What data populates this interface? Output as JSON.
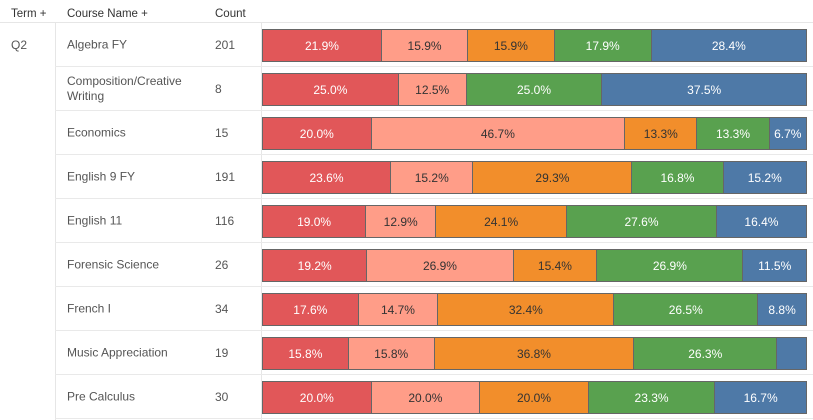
{
  "header": {
    "term": "Term +",
    "course": "Course Name +",
    "count": "Count"
  },
  "term_value": "Q2",
  "colors": [
    "#e15759",
    "#ff9d88",
    "#f28e2b",
    "#59a14f",
    "#4e79a7"
  ],
  "label_colors": [
    "#ffffff",
    "#333333",
    "#333333",
    "#ffffff",
    "#ffffff"
  ],
  "chart_data": {
    "type": "bar",
    "stacked": "100%",
    "orientation": "horizontal",
    "categories": [
      "Algebra FY",
      "Composition/Creative Writing",
      "Economics",
      "English 9 FY",
      "English 11",
      "Forensic Science",
      "French I",
      "Music Appreciation",
      "Pre Calculus"
    ],
    "counts": [
      "201",
      "8",
      "15",
      "191",
      "116",
      "26",
      "34",
      "19",
      "30"
    ],
    "values": [
      [
        21.9,
        15.9,
        15.9,
        17.9,
        28.4
      ],
      [
        25.0,
        12.5,
        0,
        25.0,
        37.5
      ],
      [
        20.0,
        46.7,
        13.3,
        13.3,
        6.7
      ],
      [
        23.6,
        15.2,
        29.3,
        16.8,
        15.2
      ],
      [
        19.0,
        12.9,
        24.1,
        27.6,
        16.4
      ],
      [
        19.2,
        26.9,
        15.4,
        26.9,
        11.5
      ],
      [
        17.6,
        14.7,
        32.4,
        26.5,
        8.8
      ],
      [
        15.8,
        15.8,
        36.8,
        26.3,
        5.3
      ],
      [
        20.0,
        20.0,
        20.0,
        23.3,
        16.7
      ]
    ],
    "labels": [
      [
        "21.9%",
        "15.9%",
        "15.9%",
        "17.9%",
        "28.4%"
      ],
      [
        "25.0%",
        "12.5%",
        "",
        "25.0%",
        "37.5%"
      ],
      [
        "20.0%",
        "46.7%",
        "13.3%",
        "13.3%",
        "6.7%"
      ],
      [
        "23.6%",
        "15.2%",
        "29.3%",
        "16.8%",
        "15.2%"
      ],
      [
        "19.0%",
        "12.9%",
        "24.1%",
        "27.6%",
        "16.4%"
      ],
      [
        "19.2%",
        "26.9%",
        "15.4%",
        "26.9%",
        "11.5%"
      ],
      [
        "17.6%",
        "14.7%",
        "32.4%",
        "26.5%",
        "8.8%"
      ],
      [
        "15.8%",
        "15.8%",
        "36.8%",
        "26.3%",
        ""
      ],
      [
        "20.0%",
        "20.0%",
        "20.0%",
        "23.3%",
        "16.7%"
      ]
    ]
  }
}
